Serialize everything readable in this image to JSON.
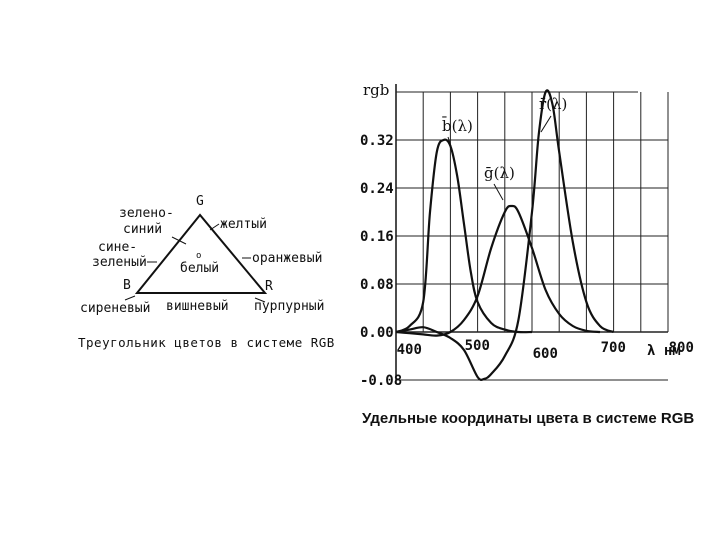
{
  "triangle": {
    "vertices": {
      "g": "G",
      "b": "B",
      "r": "R",
      "center": "o"
    },
    "labels": {
      "blue_green_1": "зелено-",
      "blue_green_2": "синий",
      "green_blue_1": "сине-",
      "green_blue_2": "зеленый",
      "yellow": "желтый",
      "orange": "оранжевый",
      "white": "белый",
      "violet": "сиреневый",
      "cherry": "вишневый",
      "purple": "пурпурный"
    },
    "caption": "Треугольник цветов в системе RGB"
  },
  "chart": {
    "ylabel": "rgb",
    "xunit": "λ нм",
    "title": "Удельные координаты цвета в системе RGB",
    "series_labels": {
      "r": "r̄(λ)",
      "g": "ḡ(λ)",
      "b": "b̄(λ)"
    }
  },
  "chart_data": {
    "type": "line",
    "title": "Удельные координаты цвета в системе RGB",
    "ylabel": "rgb",
    "xlabel": "λ нм",
    "xlim": [
      380,
      780
    ],
    "ylim": [
      -0.08,
      0.4
    ],
    "xticks": [
      {
        "value": 400,
        "label": "400"
      },
      {
        "value": 500,
        "label": "500"
      },
      {
        "value": 600,
        "label": "600"
      },
      {
        "value": 700,
        "label": "700"
      },
      {
        "value": 800,
        "label": "800"
      }
    ],
    "yticks": [
      {
        "value": 0.32,
        "label": "0.32"
      },
      {
        "value": 0.24,
        "label": "0.24"
      },
      {
        "value": 0.16,
        "label": "0.16"
      },
      {
        "value": 0.08,
        "label": "0.08"
      },
      {
        "value": 0.0,
        "label": "0.00"
      },
      {
        "value": -0.08,
        "label": "-0.08"
      }
    ],
    "grid": true,
    "series": [
      {
        "name": "r̄(λ)",
        "x": [
          380,
          400,
          420,
          440,
          460,
          480,
          500,
          510,
          520,
          540,
          560,
          580,
          590,
          600,
          610,
          620,
          640,
          660,
          680,
          700
        ],
        "y": [
          0.0,
          0.004,
          0.008,
          0.0,
          -0.01,
          -0.03,
          -0.075,
          -0.078,
          -0.07,
          -0.04,
          0.02,
          0.2,
          0.33,
          0.4,
          0.38,
          0.3,
          0.15,
          0.05,
          0.01,
          0.0
        ]
      },
      {
        "name": "ḡ(λ)",
        "x": [
          380,
          400,
          420,
          440,
          460,
          480,
          500,
          520,
          540,
          550,
          560,
          580,
          600,
          620,
          640,
          660,
          680
        ],
        "y": [
          0.0,
          -0.002,
          -0.004,
          -0.006,
          0.0,
          0.02,
          0.06,
          0.14,
          0.2,
          0.21,
          0.2,
          0.14,
          0.07,
          0.03,
          0.01,
          0.002,
          0.0
        ]
      },
      {
        "name": "b̄(λ)",
        "x": [
          380,
          400,
          420,
          430,
          440,
          450,
          460,
          470,
          480,
          490,
          500,
          520,
          540,
          560,
          580
        ],
        "y": [
          0.0,
          0.01,
          0.05,
          0.2,
          0.3,
          0.32,
          0.31,
          0.26,
          0.18,
          0.1,
          0.05,
          0.015,
          0.004,
          0.0,
          0.0
        ]
      }
    ]
  }
}
